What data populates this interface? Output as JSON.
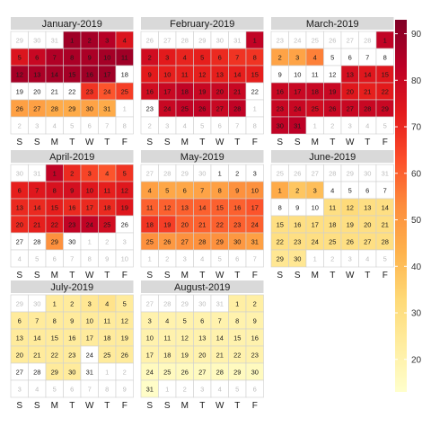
{
  "chart_data": {
    "type": "heatmap",
    "title": "",
    "layout": "calendar grid, 3 columns of months, week starts Saturday",
    "weekday_labels": [
      "S",
      "S",
      "M",
      "T",
      "W",
      "T",
      "F"
    ],
    "colorbar": {
      "ticks": [
        20,
        30,
        40,
        50,
        60,
        70,
        80,
        90
      ],
      "range": [
        13,
        93
      ],
      "palette": "YlOrRd (light yellow low → dark red high)"
    },
    "months": [
      {
        "title": "January-2019",
        "grid": [
          [
            29,
            30,
            31,
            1,
            2,
            3,
            4
          ],
          [
            5,
            6,
            7,
            8,
            9,
            10,
            11
          ],
          [
            12,
            13,
            14,
            15,
            16,
            17,
            18
          ],
          [
            19,
            20,
            21,
            22,
            23,
            24,
            25
          ],
          [
            26,
            27,
            28,
            29,
            30,
            31,
            1
          ],
          [
            2,
            3,
            4,
            5,
            6,
            7,
            8
          ]
        ],
        "first_row_offset": 3,
        "days_in_month": 31,
        "values": [
          88,
          87,
          84,
          75,
          75,
          80,
          85,
          86,
          86,
          87,
          88,
          87,
          86,
          87,
          87,
          88,
          88,
          0,
          0,
          0,
          0,
          0,
          68,
          62,
          66,
          48,
          48,
          45,
          45,
          47,
          45
        ]
      },
      {
        "title": "February-2019",
        "grid": [
          [
            26,
            27,
            28,
            29,
            30,
            31,
            1
          ],
          [
            2,
            3,
            4,
            5,
            6,
            7,
            8
          ],
          [
            9,
            10,
            11,
            12,
            13,
            14,
            15
          ],
          [
            16,
            17,
            18,
            19,
            20,
            21,
            22
          ],
          [
            23,
            24,
            25,
            26,
            27,
            28,
            1
          ],
          [
            2,
            3,
            4,
            5,
            6,
            7,
            8
          ]
        ],
        "first_row_offset": 6,
        "days_in_month": 28,
        "values": [
          82,
          78,
          73,
          71,
          72,
          70,
          68,
          68,
          73,
          72,
          72,
          72,
          72,
          72,
          72,
          78,
          80,
          82,
          80,
          80,
          80,
          0,
          0,
          80,
          82,
          82,
          80,
          82
        ]
      },
      {
        "title": "March-2019",
        "grid": [
          [
            23,
            24,
            25,
            26,
            27,
            28,
            1
          ],
          [
            2,
            3,
            4,
            5,
            6,
            7,
            8
          ],
          [
            9,
            10,
            11,
            12,
            13,
            14,
            15
          ],
          [
            16,
            17,
            18,
            19,
            20,
            21,
            22
          ],
          [
            23,
            24,
            25,
            26,
            27,
            28,
            29
          ],
          [
            30,
            31,
            1,
            2,
            3,
            4,
            5
          ]
        ],
        "first_row_offset": 6,
        "days_in_month": 31,
        "values": [
          82,
          47,
          47,
          55,
          0,
          0,
          0,
          0,
          0,
          0,
          0,
          0,
          77,
          74,
          74,
          80,
          80,
          80,
          80,
          74,
          72,
          73,
          80,
          80,
          78,
          80,
          80,
          80,
          80,
          82,
          83
        ]
      },
      {
        "title": "April-2019",
        "grid": [
          [
            30,
            31,
            1,
            2,
            3,
            4,
            5
          ],
          [
            6,
            7,
            8,
            9,
            10,
            11,
            12
          ],
          [
            13,
            14,
            15,
            16,
            17,
            18,
            19
          ],
          [
            20,
            21,
            22,
            23,
            24,
            25,
            26
          ],
          [
            27,
            28,
            29,
            30,
            1,
            2,
            3
          ],
          [
            4,
            5,
            6,
            7,
            8,
            9,
            10
          ]
        ],
        "first_row_offset": 2,
        "days_in_month": 30,
        "values": [
          82,
          70,
          65,
          62,
          68,
          72,
          74,
          76,
          77,
          74,
          72,
          74,
          70,
          70,
          72,
          70,
          70,
          70,
          74,
          70,
          72,
          74,
          82,
          82,
          78,
          0,
          0,
          0,
          52,
          0
        ]
      },
      {
        "title": "May-2019",
        "grid": [
          [
            27,
            28,
            29,
            30,
            1,
            2,
            3
          ],
          [
            4,
            5,
            6,
            7,
            8,
            9,
            10
          ],
          [
            11,
            12,
            13,
            14,
            15,
            16,
            17
          ],
          [
            18,
            19,
            20,
            21,
            22,
            23,
            24
          ],
          [
            25,
            26,
            27,
            28,
            29,
            30,
            31
          ],
          [
            1,
            2,
            3,
            4,
            5,
            6,
            7
          ]
        ],
        "first_row_offset": 4,
        "days_in_month": 31,
        "values": [
          0,
          0,
          0,
          48,
          46,
          46,
          47,
          48,
          52,
          52,
          60,
          60,
          60,
          60,
          60,
          60,
          62,
          68,
          66,
          60,
          60,
          60,
          60,
          60,
          52,
          50,
          52,
          52,
          52,
          50,
          48
        ]
      },
      {
        "title": "June-2019",
        "grid": [
          [
            25,
            26,
            27,
            28,
            29,
            30,
            31
          ],
          [
            1,
            2,
            3,
            4,
            5,
            6,
            7
          ],
          [
            8,
            9,
            10,
            11,
            12,
            13,
            14
          ],
          [
            15,
            16,
            17,
            18,
            19,
            20,
            21
          ],
          [
            22,
            23,
            24,
            25,
            26,
            27,
            28
          ],
          [
            29,
            30,
            1,
            2,
            3,
            4,
            5
          ]
        ],
        "first_row_offset": 7,
        "days_in_month": 30,
        "values": [
          45,
          38,
          40,
          0,
          0,
          0,
          0,
          0,
          0,
          0,
          30,
          32,
          30,
          30,
          30,
          30,
          30,
          30,
          30,
          30,
          30,
          30,
          30,
          30,
          30,
          30,
          30,
          30,
          26,
          26
        ]
      },
      {
        "title": "July-2019",
        "grid": [
          [
            29,
            30,
            1,
            2,
            3,
            4,
            5
          ],
          [
            6,
            7,
            8,
            9,
            10,
            11,
            12
          ],
          [
            13,
            14,
            15,
            16,
            17,
            18,
            19
          ],
          [
            20,
            21,
            22,
            23,
            24,
            25,
            26
          ],
          [
            27,
            28,
            29,
            30,
            31,
            1,
            2
          ],
          [
            3,
            4,
            5,
            6,
            7,
            8,
            9
          ]
        ],
        "first_row_offset": 2,
        "days_in_month": 31,
        "values": [
          24,
          24,
          26,
          28,
          24,
          24,
          24,
          24,
          24,
          24,
          24,
          24,
          24,
          24,
          24,
          24,
          24,
          24,
          24,
          24,
          24,
          24,
          24,
          0,
          24,
          24,
          0,
          0,
          24,
          24,
          0
        ]
      },
      {
        "title": "August-2019",
        "grid": [
          [
            27,
            28,
            29,
            30,
            31,
            1,
            2
          ],
          [
            3,
            4,
            5,
            6,
            7,
            8,
            9
          ],
          [
            10,
            11,
            12,
            13,
            14,
            15,
            16
          ],
          [
            17,
            18,
            19,
            20,
            21,
            22,
            23
          ],
          [
            24,
            25,
            26,
            27,
            28,
            29,
            30
          ],
          [
            31,
            1,
            2,
            3,
            4,
            5,
            6
          ]
        ],
        "first_row_offset": 5,
        "days_in_month": 31,
        "values": [
          22,
          22,
          20,
          20,
          20,
          20,
          20,
          20,
          20,
          20,
          20,
          20,
          20,
          20,
          20,
          20,
          20,
          20,
          20,
          20,
          20,
          20,
          20,
          16,
          16,
          16,
          16,
          16,
          16,
          16,
          14
        ]
      }
    ]
  }
}
